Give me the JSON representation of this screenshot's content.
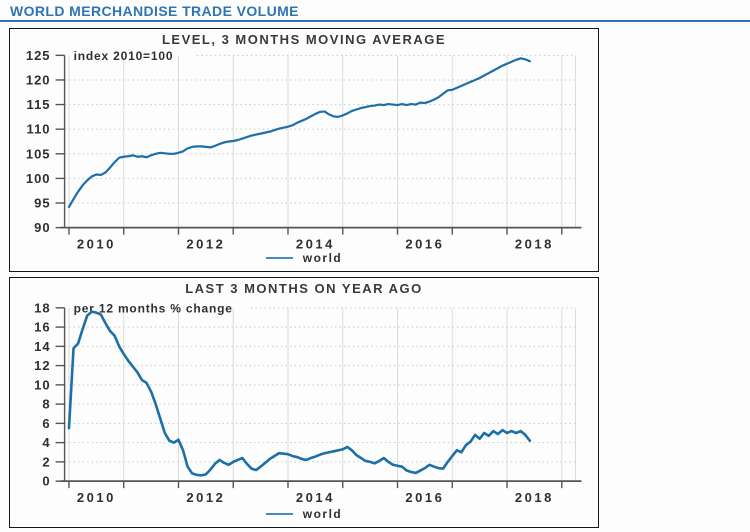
{
  "title": "WORLD MERCHANDISE TRADE VOLUME",
  "colors": {
    "accent": "#2e74b5",
    "series_blue": "#1d6fa8",
    "grid": "#dcdcdc",
    "grid_dotted": "#c9c9c9",
    "axis": "#555555",
    "text": "#2f2f2f"
  },
  "chart_data": [
    {
      "type": "line",
      "title": "LEVEL, 3 MONTHS MOVING AVERAGE",
      "annotation": "index 2010=100",
      "xlim": [
        2009.92,
        2019.25
      ],
      "ylim": [
        90,
        125
      ],
      "y_ticks": [
        90,
        95,
        100,
        105,
        110,
        115,
        120,
        125
      ],
      "x_year_ticks": [
        2010,
        2011,
        2012,
        2013,
        2014,
        2015,
        2016,
        2017,
        2018,
        2019
      ],
      "x_labels": [
        {
          "text": "2010",
          "x": 2010.5
        },
        {
          "text": "2012",
          "x": 2012.5
        },
        {
          "text": "2014",
          "x": 2014.5
        },
        {
          "text": "2016",
          "x": 2016.5
        },
        {
          "text": "2018",
          "x": 2018.5
        }
      ],
      "grid": true,
      "legend_position": "bottom",
      "series": [
        {
          "name": "world",
          "color": "#1d6fa8",
          "x_start": 2010.0,
          "x_step_months": 1,
          "values": [
            94.2,
            95.8,
            97.3,
            98.6,
            99.6,
            100.4,
            100.8,
            100.7,
            101.2,
            102.2,
            103.3,
            104.2,
            104.4,
            104.5,
            104.7,
            104.4,
            104.5,
            104.3,
            104.7,
            105.0,
            105.2,
            105.1,
            105.0,
            105.0,
            105.2,
            105.5,
            106.1,
            106.4,
            106.5,
            106.5,
            106.4,
            106.3,
            106.6,
            107.0,
            107.3,
            107.5,
            107.6,
            107.8,
            108.1,
            108.4,
            108.7,
            108.9,
            109.1,
            109.3,
            109.5,
            109.8,
            110.1,
            110.3,
            110.5,
            110.8,
            111.3,
            111.7,
            112.1,
            112.6,
            113.1,
            113.5,
            113.6,
            113.0,
            112.6,
            112.5,
            112.8,
            113.2,
            113.7,
            114.0,
            114.3,
            114.5,
            114.7,
            114.8,
            115.0,
            114.9,
            115.1,
            115.0,
            114.9,
            115.1,
            114.9,
            115.1,
            115.0,
            115.4,
            115.3,
            115.6,
            116.0,
            116.5,
            117.2,
            117.9,
            118.0,
            118.4,
            118.8,
            119.2,
            119.6,
            120.0,
            120.4,
            120.9,
            121.4,
            121.9,
            122.4,
            122.9,
            123.3,
            123.7,
            124.1,
            124.4,
            124.2,
            123.8
          ]
        }
      ]
    },
    {
      "type": "line",
      "title": "LAST 3 MONTHS ON YEAR AGO",
      "annotation": "per 12 months % change",
      "xlim": [
        2009.92,
        2019.25
      ],
      "ylim": [
        0,
        18
      ],
      "y_ticks": [
        0,
        2,
        4,
        6,
        8,
        10,
        12,
        14,
        16,
        18
      ],
      "x_year_ticks": [
        2010,
        2011,
        2012,
        2013,
        2014,
        2015,
        2016,
        2017,
        2018,
        2019
      ],
      "x_labels": [
        {
          "text": "2010",
          "x": 2010.5
        },
        {
          "text": "2012",
          "x": 2012.5
        },
        {
          "text": "2014",
          "x": 2014.5
        },
        {
          "text": "2016",
          "x": 2016.5
        },
        {
          "text": "2018",
          "x": 2018.5
        }
      ],
      "grid": true,
      "legend_position": "bottom",
      "series": [
        {
          "name": "world",
          "color": "#1d6fa8",
          "x_start": 2010.0,
          "x_step_months": 1,
          "values": [
            5.5,
            13.8,
            14.3,
            15.8,
            17.2,
            17.6,
            17.5,
            17.3,
            16.4,
            15.6,
            15.1,
            14.0,
            13.2,
            12.5,
            11.9,
            11.3,
            10.5,
            10.2,
            9.3,
            8.0,
            6.5,
            5.0,
            4.2,
            4.0,
            4.3,
            3.2,
            1.5,
            0.8,
            0.65,
            0.6,
            0.7,
            1.2,
            1.8,
            2.2,
            1.9,
            1.7,
            2.0,
            2.2,
            2.4,
            1.8,
            1.3,
            1.15,
            1.5,
            1.9,
            2.3,
            2.6,
            2.9,
            2.85,
            2.8,
            2.6,
            2.5,
            2.3,
            2.2,
            2.4,
            2.55,
            2.75,
            2.9,
            3.0,
            3.1,
            3.2,
            3.3,
            3.55,
            3.2,
            2.7,
            2.4,
            2.1,
            2.0,
            1.85,
            2.1,
            2.4,
            2.0,
            1.7,
            1.6,
            1.5,
            1.1,
            0.95,
            0.85,
            1.1,
            1.35,
            1.7,
            1.5,
            1.35,
            1.3,
            2.0,
            2.6,
            3.2,
            3.0,
            3.75,
            4.1,
            4.8,
            4.4,
            5.0,
            4.7,
            5.2,
            4.9,
            5.3,
            5.0,
            5.2,
            5.0,
            5.2,
            4.8,
            4.2
          ]
        }
      ]
    }
  ]
}
